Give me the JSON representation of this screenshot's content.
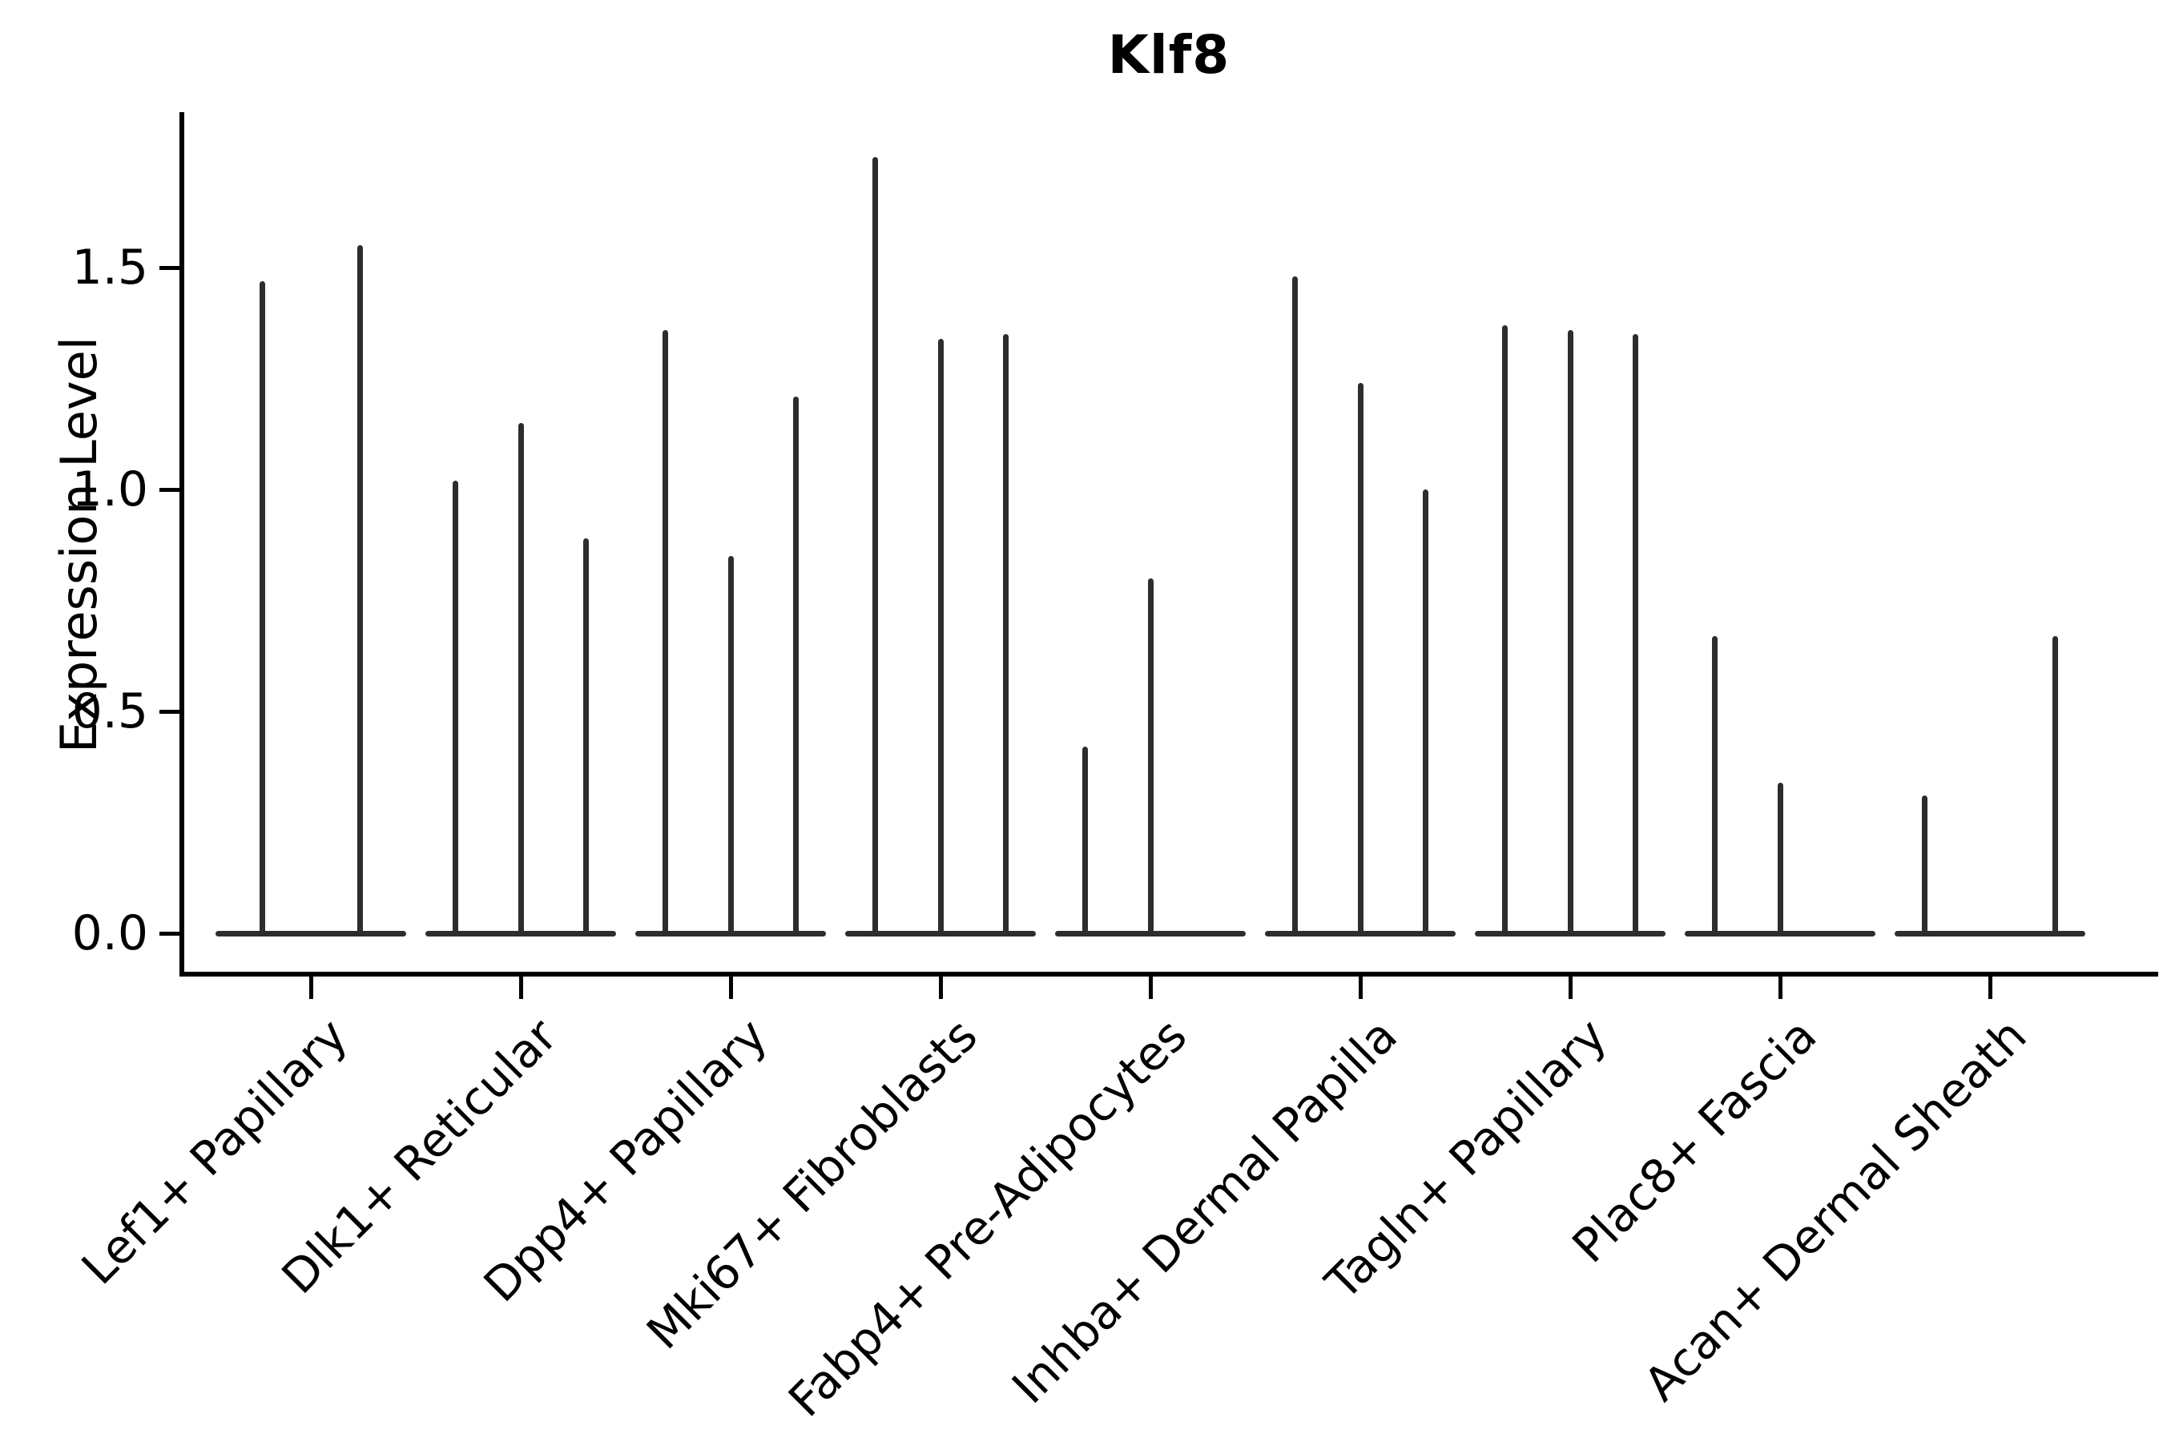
{
  "figure": {
    "background_color": "#ffffff",
    "text_color": "#000000",
    "violin_color": "#2d2d2d"
  },
  "chart_data": {
    "type": "violin",
    "title": "Klf8",
    "xlabel": "",
    "ylabel": "Expression Level",
    "ytick_labels": [
      "0.0",
      "0.5",
      "1.0",
      "1.5"
    ],
    "ytick_values": [
      0.0,
      0.5,
      1.0,
      1.5
    ],
    "ylim": [
      -0.09,
      1.85
    ],
    "grid": false,
    "legend": "none",
    "x_label_rotation_deg": 45,
    "categories": [
      "Lef1+ Papillary",
      "Dlk1+ Reticular",
      "Dpp4+ Papillary",
      "Mki67+ Fibroblasts",
      "Fabp4+ Pre-Adipocytes",
      "Inhba+ Dermal Papilla",
      "Tagln+ Papillary",
      "Plac8+ Fascia",
      "Acan+ Dermal Sheath"
    ],
    "groups": [
      {
        "category": "Lef1+ Papillary",
        "violin_maxima": [
          1.47,
          1.55
        ]
      },
      {
        "category": "Dlk1+ Reticular",
        "violin_maxima": [
          1.02,
          1.15,
          0.89
        ]
      },
      {
        "category": "Dpp4+ Papillary",
        "violin_maxima": [
          1.36,
          0.85,
          1.21
        ]
      },
      {
        "category": "Mki67+ Fibroblasts",
        "violin_maxima": [
          1.75,
          1.34,
          1.35
        ]
      },
      {
        "category": "Fabp4+ Pre-Adipocytes",
        "violin_maxima": [
          0.42,
          0.8,
          0
        ]
      },
      {
        "category": "Inhba+ Dermal Papilla",
        "violin_maxima": [
          1.48,
          1.24,
          1.0
        ]
      },
      {
        "category": "Tagln+ Papillary",
        "violin_maxima": [
          1.37,
          1.36,
          1.35
        ]
      },
      {
        "category": "Plac8+ Fascia",
        "violin_maxima": [
          0.67,
          0.34,
          0
        ]
      },
      {
        "category": "Acan+ Dermal Sheath",
        "violin_maxima": [
          0.31,
          0,
          0.67
        ]
      }
    ],
    "note": "Each category shows 2-3 bottom-heavy violins: a wide flat density bulge at expression 0 plus a thin spike rising to the listed maximum; a value of 0 means that violin is flat with no spike."
  }
}
